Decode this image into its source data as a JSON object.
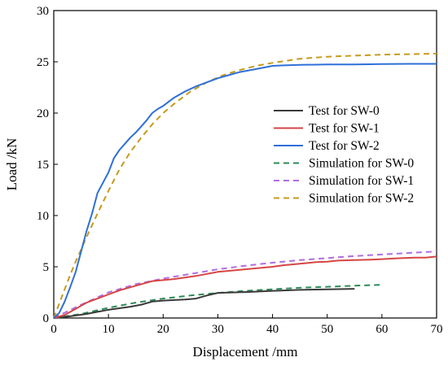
{
  "chart_data": {
    "type": "line",
    "title": "",
    "xlabel": "Displacement /mm",
    "ylabel": "Load /kN",
    "xlim": [
      0,
      70
    ],
    "ylim": [
      0,
      30
    ],
    "xticks": [
      "0",
      "10",
      "20",
      "30",
      "40",
      "50",
      "60",
      "70"
    ],
    "yticks": [
      "0",
      "5",
      "10",
      "15",
      "20",
      "25",
      "30"
    ],
    "grid": false,
    "legend_position": "right",
    "series": [
      {
        "name": "Test for SW-0",
        "color": "#3a3a3a",
        "dash": "solid",
        "x": [
          0,
          2,
          4,
          6,
          8,
          10,
          12,
          14,
          16,
          18,
          20,
          22,
          24,
          26,
          28,
          30,
          33,
          36,
          40,
          45,
          50,
          55
        ],
        "y": [
          0,
          0.1,
          0.25,
          0.4,
          0.6,
          0.8,
          0.95,
          1.1,
          1.3,
          1.6,
          1.7,
          1.75,
          1.8,
          1.9,
          2.2,
          2.45,
          2.5,
          2.55,
          2.65,
          2.75,
          2.8,
          2.85
        ]
      },
      {
        "name": "Test for SW-1",
        "color": "#d64545",
        "dash": "solid",
        "x": [
          0,
          2,
          4,
          6,
          8,
          10,
          12,
          14,
          16,
          18,
          20,
          22,
          24,
          26,
          28,
          30,
          32,
          34,
          36,
          38,
          40,
          42,
          44,
          46,
          48,
          50,
          52,
          55,
          58,
          60,
          62,
          64,
          66,
          68,
          70
        ],
        "y": [
          0,
          0.3,
          0.9,
          1.5,
          1.9,
          2.3,
          2.7,
          3.0,
          3.3,
          3.6,
          3.7,
          3.8,
          3.95,
          4.1,
          4.3,
          4.5,
          4.6,
          4.7,
          4.8,
          4.9,
          5.0,
          5.15,
          5.25,
          5.35,
          5.45,
          5.5,
          5.6,
          5.65,
          5.7,
          5.75,
          5.8,
          5.85,
          5.9,
          5.9,
          6.0
        ]
      },
      {
        "name": "Test for SW-2",
        "color": "#2e6fd8",
        "dash": "solid",
        "x": [
          0,
          1,
          2,
          3,
          4,
          5,
          6,
          7,
          8,
          9,
          10,
          11,
          12,
          13,
          14,
          15,
          16,
          17,
          18,
          19,
          20,
          22,
          24,
          26,
          28,
          30,
          32,
          34,
          36,
          38,
          40,
          42,
          45,
          50,
          55,
          60,
          65,
          70
        ],
        "y": [
          0,
          0.5,
          1.6,
          3.0,
          4.5,
          6.5,
          8.5,
          10.2,
          12.2,
          13.2,
          14.2,
          15.6,
          16.4,
          17.0,
          17.6,
          18.1,
          18.7,
          19.3,
          20.0,
          20.4,
          20.7,
          21.5,
          22.1,
          22.6,
          23.0,
          23.4,
          23.7,
          24.0,
          24.2,
          24.4,
          24.6,
          24.65,
          24.7,
          24.75,
          24.75,
          24.78,
          24.8,
          24.8
        ]
      },
      {
        "name": "Simulation for SW-0",
        "color": "#2e8b57",
        "dash": "dashed",
        "x": [
          0,
          5,
          10,
          15,
          20,
          25,
          30,
          35,
          40,
          45,
          50,
          55,
          60
        ],
        "y": [
          0,
          0.4,
          1.0,
          1.5,
          1.9,
          2.2,
          2.45,
          2.65,
          2.8,
          2.95,
          3.05,
          3.15,
          3.25
        ]
      },
      {
        "name": "Simulation for SW-1",
        "color": "#b06ee0",
        "dash": "dashed",
        "x": [
          0,
          5,
          10,
          15,
          20,
          25,
          30,
          35,
          40,
          45,
          50,
          55,
          60,
          65,
          70
        ],
        "y": [
          0,
          1.3,
          2.5,
          3.3,
          3.85,
          4.3,
          4.75,
          5.1,
          5.4,
          5.65,
          5.85,
          6.05,
          6.2,
          6.35,
          6.5
        ]
      },
      {
        "name": "Simulation for SW-2",
        "color": "#c79a1e",
        "dash": "dashed",
        "x": [
          0,
          1,
          2,
          3,
          4,
          5,
          6,
          8,
          10,
          12,
          14,
          16,
          18,
          20,
          22,
          25,
          28,
          31,
          34,
          37,
          40,
          45,
          50,
          55,
          60,
          65,
          70
        ],
        "y": [
          0,
          1.4,
          2.8,
          4.2,
          5.5,
          6.7,
          7.9,
          10.2,
          12.4,
          14.5,
          16.2,
          17.6,
          18.9,
          20.0,
          20.9,
          22.1,
          23.0,
          23.7,
          24.2,
          24.6,
          24.9,
          25.3,
          25.5,
          25.6,
          25.7,
          25.75,
          25.8
        ]
      }
    ]
  }
}
